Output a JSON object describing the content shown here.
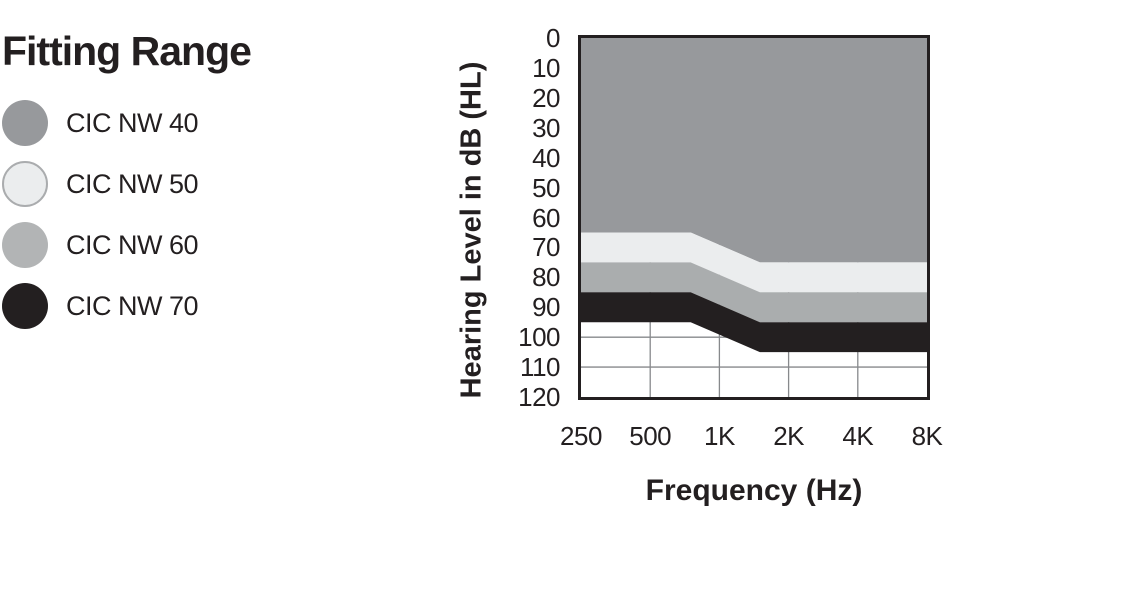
{
  "title": "Fitting Range",
  "legend": {
    "items": [
      {
        "label": "CIC NW 40",
        "color": "#97999c",
        "border": null
      },
      {
        "label": "CIC NW 50",
        "color": "#ebedee",
        "border": "#aaacae"
      },
      {
        "label": "CIC NW 60",
        "color": "#b2b4b5",
        "border": null
      },
      {
        "label": "CIC NW 70",
        "color": "#231f20",
        "border": null
      }
    ]
  },
  "chart_data": {
    "type": "area",
    "title": "Fitting Range",
    "xlabel": "Frequency (Hz)",
    "ylabel": "Hearing Level in dB (HL)",
    "xscale": "log2",
    "xlim_hz": [
      250,
      8000
    ],
    "ylim": [
      0,
      120
    ],
    "y_axis_reversed": true,
    "x_ticks": [
      "250",
      "500",
      "1K",
      "2K",
      "4K",
      "8K"
    ],
    "x_tick_values_hz": [
      250,
      500,
      1000,
      2000,
      4000,
      8000
    ],
    "y_ticks": [
      0,
      10,
      20,
      30,
      40,
      50,
      60,
      70,
      80,
      90,
      100,
      110,
      120
    ],
    "gridlines": {
      "vertical_at_hz": [
        500,
        1000,
        2000,
        4000
      ],
      "horizontal_at_db": [
        100,
        110
      ],
      "color": "#87898c"
    },
    "border_color": "#231f20",
    "band_x_hz": [
      250,
      750,
      1500,
      8000
    ],
    "bands": [
      {
        "name": "CIC NW 40",
        "color": "#97999c",
        "top_db": [
          0,
          0,
          0,
          0
        ],
        "bottom_db": [
          65,
          65,
          75,
          75
        ]
      },
      {
        "name": "CIC NW 50",
        "color": "#ebedee",
        "top_db": [
          65,
          65,
          75,
          75
        ],
        "bottom_db": [
          75,
          75,
          85,
          85
        ]
      },
      {
        "name": "CIC NW 60",
        "color": "#aaadae",
        "top_db": [
          75,
          75,
          85,
          85
        ],
        "bottom_db": [
          85,
          85,
          95,
          95
        ]
      },
      {
        "name": "CIC NW 70",
        "color": "#231f20",
        "top_db": [
          85,
          85,
          95,
          95
        ],
        "bottom_db": [
          95,
          95,
          105,
          105
        ]
      }
    ]
  }
}
